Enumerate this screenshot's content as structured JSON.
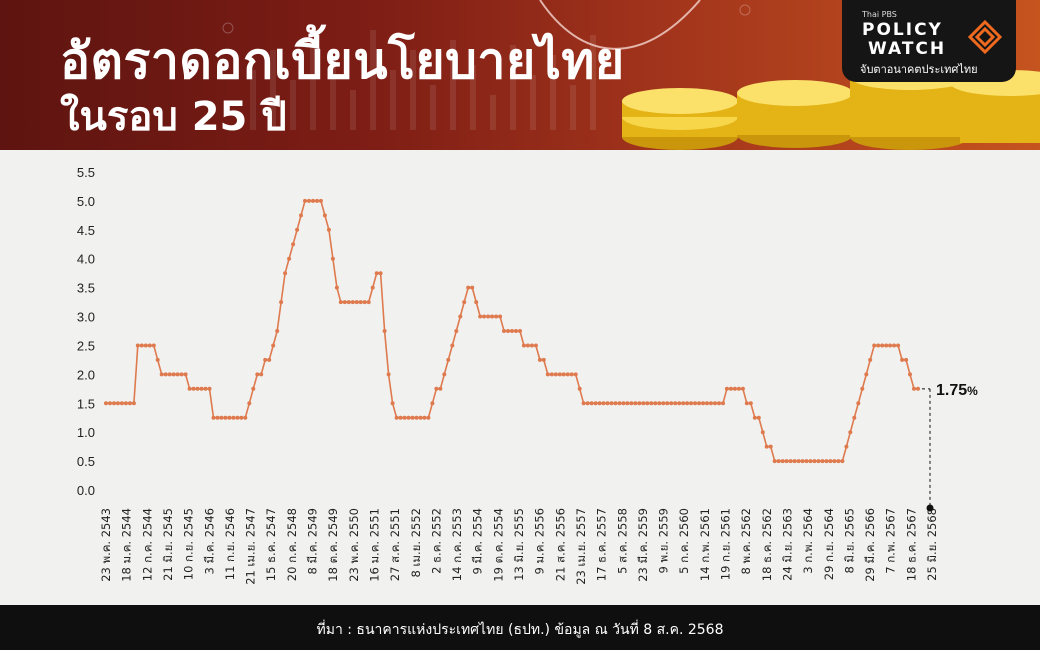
{
  "header": {
    "title_line1": "อัตราดอกเบี้ยนโยบายไทย",
    "title_line2": "ในรอบ 25 ปี"
  },
  "logo": {
    "brand": "Thai PBS",
    "policy": "POLICY",
    "watch": "WATCH",
    "tagline": "จับตาอนาคตประเทศไทย"
  },
  "footer": {
    "source": "ที่มา : ธนาคารแห่งประเทศไทย (ธปท.) ข้อมูล ณ วันที่ 8 ส.ค. 2568"
  },
  "colors": {
    "line": "#de7a4e",
    "header_dark": "#5e1410",
    "header_light": "#c5541f",
    "coin": "#f2c21a"
  },
  "chart_data": {
    "type": "line",
    "title": "อัตราดอกเบี้ยนโยบายไทย ในรอบ 25 ปี",
    "ylim": [
      0,
      5.5
    ],
    "yticks": [
      "0.0",
      "0.5",
      "1.0",
      "1.5",
      "2.0",
      "2.5",
      "3.0",
      "3.5",
      "4.0",
      "4.5",
      "5.0",
      "5.5"
    ],
    "grid": false,
    "x_tick_labels": [
      "23 พ.ค. 2543",
      "18 ม.ค. 2544",
      "12 ก.ค. 2544",
      "21 มิ.ย. 2545",
      "10 ก.ย. 2545",
      "3 มี.ค. 2546",
      "11 ก.ย. 2546",
      "21 เม.ย. 2547",
      "15 ธ.ค. 2547",
      "20 ก.ค. 2548",
      "8 มี.ค. 2549",
      "18 ต.ค. 2549",
      "23 พ.ค. 2550",
      "16 ม.ค. 2551",
      "27 ส.ค. 2551",
      "8 เม.ย. 2552",
      "2 ธ.ค. 2552",
      "14 ก.ค. 2553",
      "9 มี.ค. 2554",
      "19 ต.ค. 2554",
      "13 มิ.ย. 2555",
      "9 ม.ค. 2556",
      "21 ส.ค. 2556",
      "23 เม.ย. 2557",
      "17 ธ.ค. 2557",
      "5 ส.ค. 2558",
      "23 มี.ค. 2559",
      "9 พ.ย. 2559",
      "5 ก.ค. 2560",
      "14 ก.พ. 2561",
      "19 ก.ย. 2561",
      "8 พ.ค. 2562",
      "18 ธ.ค. 2562",
      "24 มิ.ย. 2563",
      "3 ก.พ. 2564",
      "29 ก.ย. 2564",
      "8 มิ.ย. 2565",
      "29 มี.ค. 2566",
      "7 ก.พ. 2567",
      "18 ธ.ค. 2567",
      "25 มิ.ย. 2568"
    ],
    "values": [
      1.5,
      1.5,
      1.5,
      1.5,
      1.5,
      1.5,
      1.5,
      1.5,
      2.5,
      2.5,
      2.5,
      2.5,
      2.5,
      2.25,
      2.0,
      2.0,
      2.0,
      2.0,
      2.0,
      2.0,
      2.0,
      1.75,
      1.75,
      1.75,
      1.75,
      1.75,
      1.75,
      1.25,
      1.25,
      1.25,
      1.25,
      1.25,
      1.25,
      1.25,
      1.25,
      1.25,
      1.5,
      1.75,
      2.0,
      2.0,
      2.25,
      2.25,
      2.5,
      2.75,
      3.25,
      3.75,
      4.0,
      4.25,
      4.5,
      4.75,
      5.0,
      5.0,
      5.0,
      5.0,
      5.0,
      4.75,
      4.5,
      4.0,
      3.5,
      3.25,
      3.25,
      3.25,
      3.25,
      3.25,
      3.25,
      3.25,
      3.25,
      3.5,
      3.75,
      3.75,
      2.75,
      2.0,
      1.5,
      1.25,
      1.25,
      1.25,
      1.25,
      1.25,
      1.25,
      1.25,
      1.25,
      1.25,
      1.5,
      1.75,
      1.75,
      2.0,
      2.25,
      2.5,
      2.75,
      3.0,
      3.25,
      3.5,
      3.5,
      3.25,
      3.0,
      3.0,
      3.0,
      3.0,
      3.0,
      3.0,
      2.75,
      2.75,
      2.75,
      2.75,
      2.75,
      2.5,
      2.5,
      2.5,
      2.5,
      2.25,
      2.25,
      2.0,
      2.0,
      2.0,
      2.0,
      2.0,
      2.0,
      2.0,
      2.0,
      1.75,
      1.5,
      1.5,
      1.5,
      1.5,
      1.5,
      1.5,
      1.5,
      1.5,
      1.5,
      1.5,
      1.5,
      1.5,
      1.5,
      1.5,
      1.5,
      1.5,
      1.5,
      1.5,
      1.5,
      1.5,
      1.5,
      1.5,
      1.5,
      1.5,
      1.5,
      1.5,
      1.5,
      1.5,
      1.5,
      1.5,
      1.5,
      1.5,
      1.5,
      1.5,
      1.5,
      1.5,
      1.75,
      1.75,
      1.75,
      1.75,
      1.75,
      1.5,
      1.5,
      1.25,
      1.25,
      1.0,
      0.75,
      0.75,
      0.5,
      0.5,
      0.5,
      0.5,
      0.5,
      0.5,
      0.5,
      0.5,
      0.5,
      0.5,
      0.5,
      0.5,
      0.5,
      0.5,
      0.5,
      0.5,
      0.5,
      0.5,
      0.75,
      1.0,
      1.25,
      1.5,
      1.75,
      2.0,
      2.25,
      2.5,
      2.5,
      2.5,
      2.5,
      2.5,
      2.5,
      2.5,
      2.25,
      2.25,
      2.0,
      1.75,
      1.75
    ],
    "end_label": {
      "value": "1.75",
      "unit": "%"
    }
  }
}
